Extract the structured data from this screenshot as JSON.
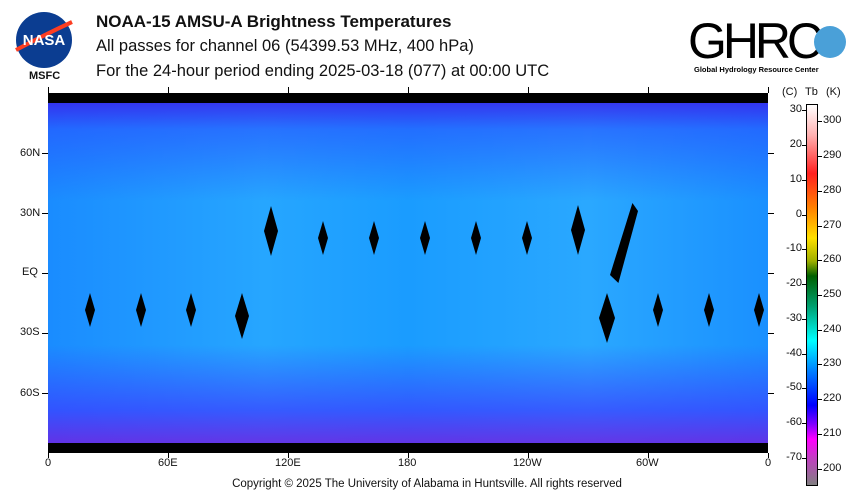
{
  "header": {
    "title": "NOAA-15 AMSU-A Brightness Temperatures",
    "subtitle": "All passes for channel 06 (54399.53 MHz, 400 hPa)",
    "period": "For the 24-hour period ending 2025-03-18 (077) at 00:00 UTC"
  },
  "logos": {
    "nasa": "NASA",
    "msfc": "MSFC",
    "ghrc": "GHRC",
    "ghrc_sub": "Global Hydrology Resource Center"
  },
  "map": {
    "lat_labels": [
      "60N",
      "30N",
      "EQ",
      "30S",
      "60S"
    ],
    "lon_labels": [
      "0",
      "60E",
      "120E",
      "180",
      "120W",
      "60W",
      "0"
    ]
  },
  "colorbar": {
    "header_c": "(C)",
    "header_tb": "Tb",
    "header_k": "(K)",
    "celsius": [
      "30",
      "20",
      "10",
      "0",
      "-10",
      "-20",
      "-30",
      "-40",
      "-50",
      "-60",
      "-70"
    ],
    "kelvin": [
      "300",
      "290",
      "280",
      "270",
      "260",
      "250",
      "240",
      "230",
      "220",
      "210",
      "200"
    ],
    "range_k": [
      195,
      305
    ]
  },
  "footer": {
    "copyright": "Copyright © 2025 The University of Alabama in Huntsville.  All rights reserved"
  }
}
